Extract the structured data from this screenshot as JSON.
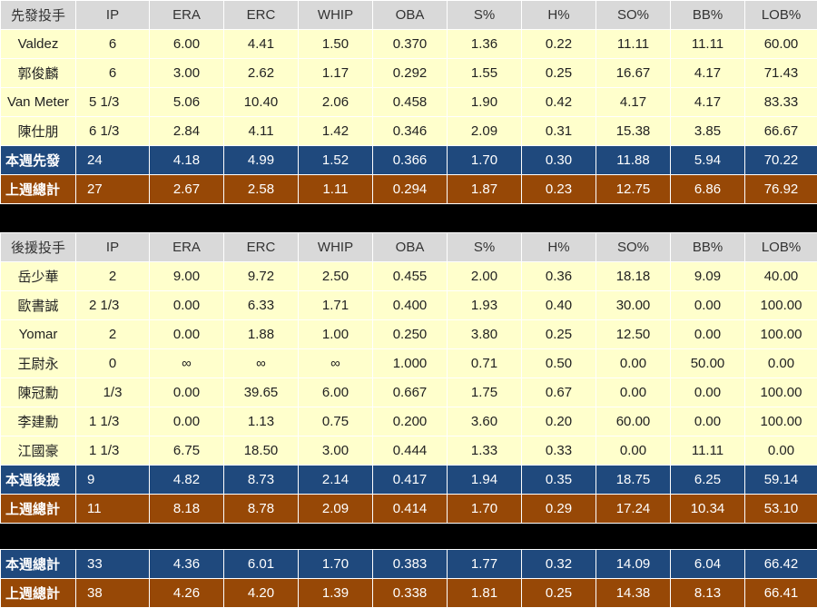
{
  "columns": [
    "IP",
    "ERA",
    "ERC",
    "WHIP",
    "OBA",
    "S%",
    "H%",
    "SO%",
    "BB%",
    "LOB%"
  ],
  "starters": {
    "header": "先發投手",
    "rows": [
      {
        "name": "Valdez",
        "vals": [
          "6",
          "6.00",
          "4.41",
          "1.50",
          "0.370",
          "1.36",
          "0.22",
          "11.11",
          "11.11",
          "60.00"
        ]
      },
      {
        "name": "郭俊麟",
        "vals": [
          "6",
          "3.00",
          "2.62",
          "1.17",
          "0.292",
          "1.55",
          "0.25",
          "16.67",
          "4.17",
          "71.43"
        ]
      },
      {
        "name": "Van Meter",
        "vals": [
          "5 1/3",
          "5.06",
          "10.40",
          "2.06",
          "0.458",
          "1.90",
          "0.42",
          "4.17",
          "4.17",
          "83.33"
        ]
      },
      {
        "name": "陳仕朋",
        "vals": [
          "6 1/3",
          "2.84",
          "4.11",
          "1.42",
          "0.346",
          "2.09",
          "0.31",
          "15.38",
          "3.85",
          "66.67"
        ]
      }
    ],
    "this_week": {
      "name": "本週先發",
      "vals": [
        "24",
        "4.18",
        "4.99",
        "1.52",
        "0.366",
        "1.70",
        "0.30",
        "11.88",
        "5.94",
        "70.22"
      ]
    },
    "last_week": {
      "name": "上週總計",
      "vals": [
        "27",
        "2.67",
        "2.58",
        "1.11",
        "0.294",
        "1.87",
        "0.23",
        "12.75",
        "6.86",
        "76.92"
      ]
    }
  },
  "relievers": {
    "header": "後援投手",
    "rows": [
      {
        "name": "岳少華",
        "vals": [
          "2",
          "9.00",
          "9.72",
          "2.50",
          "0.455",
          "2.00",
          "0.36",
          "18.18",
          "9.09",
          "40.00"
        ]
      },
      {
        "name": "歐書誠",
        "vals": [
          "2 1/3",
          "0.00",
          "6.33",
          "1.71",
          "0.400",
          "1.93",
          "0.40",
          "30.00",
          "0.00",
          "100.00"
        ]
      },
      {
        "name": "Yomar",
        "vals": [
          "2",
          "0.00",
          "1.88",
          "1.00",
          "0.250",
          "3.80",
          "0.25",
          "12.50",
          "0.00",
          "100.00"
        ]
      },
      {
        "name": "王尉永",
        "vals": [
          "0",
          "∞",
          "∞",
          "∞",
          "1.000",
          "0.71",
          "0.50",
          "0.00",
          "50.00",
          "0.00"
        ]
      },
      {
        "name": "陳冠勳",
        "vals": [
          "1/3",
          "0.00",
          "39.65",
          "6.00",
          "0.667",
          "1.75",
          "0.67",
          "0.00",
          "0.00",
          "100.00"
        ]
      },
      {
        "name": "李建勳",
        "vals": [
          "1 1/3",
          "0.00",
          "1.13",
          "0.75",
          "0.200",
          "3.60",
          "0.20",
          "60.00",
          "0.00",
          "100.00"
        ]
      },
      {
        "name": "江國豪",
        "vals": [
          "1 1/3",
          "6.75",
          "18.50",
          "3.00",
          "0.444",
          "1.33",
          "0.33",
          "0.00",
          "11.11",
          "0.00"
        ]
      }
    ],
    "this_week": {
      "name": "本週後援",
      "vals": [
        "9",
        "4.82",
        "8.73",
        "2.14",
        "0.417",
        "1.94",
        "0.35",
        "18.75",
        "6.25",
        "59.14"
      ]
    },
    "last_week": {
      "name": "上週總計",
      "vals": [
        "11",
        "8.18",
        "8.78",
        "2.09",
        "0.414",
        "1.70",
        "0.29",
        "17.24",
        "10.34",
        "53.10"
      ]
    }
  },
  "totals": {
    "this_week": {
      "name": "本週總計",
      "vals": [
        "33",
        "4.36",
        "6.01",
        "1.70",
        "0.383",
        "1.77",
        "0.32",
        "14.09",
        "6.04",
        "66.42"
      ]
    },
    "last_week": {
      "name": "上週總計",
      "vals": [
        "38",
        "4.26",
        "4.20",
        "1.39",
        "0.338",
        "1.81",
        "0.25",
        "14.38",
        "8.13",
        "66.41"
      ]
    }
  },
  "colors": {
    "header_bg": "#d9d9d9",
    "row_bg": "#ffffcc",
    "this_week_bg": "#1f497d",
    "last_week_bg": "#974806"
  }
}
